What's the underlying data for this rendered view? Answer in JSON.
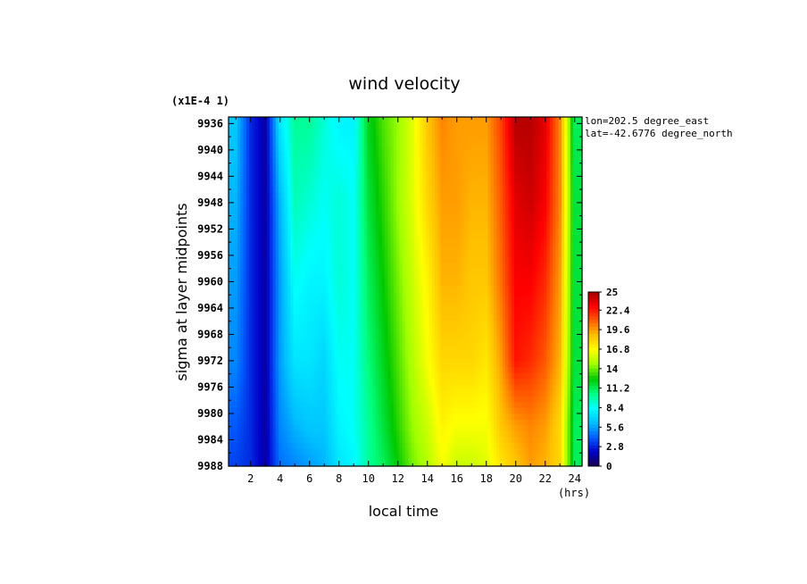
{
  "chart_data": {
    "type": "heatmap",
    "title": "wind velocity",
    "xlabel": "local time",
    "ylabel": "sigma at layer midpoints",
    "y_scale_note": "(x1E-4 1)",
    "x_unit": "(hrs)",
    "xlim": [
      0.5,
      24.5
    ],
    "ylim": [
      9988,
      9935
    ],
    "x_ticks": [
      "2",
      "4",
      "6",
      "8",
      "10",
      "12",
      "14",
      "16",
      "18",
      "20",
      "22",
      "24"
    ],
    "y_ticks": [
      "9936",
      "9940",
      "9944",
      "9948",
      "9952",
      "9956",
      "9960",
      "9964",
      "9968",
      "9972",
      "9976",
      "9980",
      "9984",
      "9988"
    ],
    "annotations": [
      "lon=202.5 degree_east",
      "lat=-42.6776 degree_north"
    ],
    "colorbar": {
      "min": 0,
      "max": 25,
      "tick_labels": [
        "25",
        "22.4",
        "19.6",
        "16.8",
        "14",
        "11.2",
        "8.4",
        "5.6",
        "2.8",
        "0"
      ],
      "colormap": [
        "#1a0050",
        "#0000c8",
        "#0060ff",
        "#00c0ff",
        "#00ffff",
        "#00ff80",
        "#00c800",
        "#a0ff00",
        "#ffff00",
        "#ffc000",
        "#ff6000",
        "#ff0000",
        "#a00000"
      ]
    },
    "x": [
      1,
      2,
      3,
      4,
      5,
      6,
      7,
      8,
      9,
      10,
      11,
      12,
      13,
      14,
      15,
      16,
      17,
      18,
      19,
      20,
      21,
      22,
      23,
      24
    ],
    "y": [
      9936,
      9948,
      9960,
      9972,
      9982,
      9988
    ],
    "values": [
      [
        6.5,
        3.0,
        1.5,
        7.5,
        10.0,
        10.0,
        9.0,
        8.0,
        8.0,
        12.0,
        13.5,
        14.5,
        16.0,
        18.5,
        20.0,
        19.5,
        19.5,
        19.5,
        21.5,
        24.5,
        24.5,
        23.5,
        20.0,
        11.0
      ],
      [
        6.0,
        3.0,
        1.5,
        6.0,
        9.5,
        9.0,
        8.5,
        9.0,
        8.5,
        11.5,
        13.0,
        14.5,
        16.0,
        18.0,
        19.5,
        19.5,
        19.0,
        19.0,
        21.0,
        23.5,
        24.0,
        23.0,
        20.0,
        11.5
      ],
      [
        5.5,
        3.0,
        1.5,
        5.5,
        8.5,
        8.0,
        8.0,
        9.0,
        8.5,
        11.0,
        12.5,
        14.0,
        15.5,
        17.0,
        19.0,
        19.0,
        18.5,
        18.5,
        20.5,
        23.0,
        23.0,
        22.0,
        19.5,
        11.5
      ],
      [
        5.0,
        3.0,
        1.5,
        5.5,
        7.5,
        7.5,
        7.0,
        8.5,
        8.5,
        10.5,
        12.0,
        13.5,
        15.0,
        16.5,
        18.0,
        18.0,
        18.0,
        17.5,
        19.5,
        22.5,
        22.0,
        21.0,
        19.0,
        11.5
      ],
      [
        4.0,
        3.0,
        1.5,
        5.0,
        6.0,
        6.5,
        6.5,
        8.0,
        8.5,
        10.0,
        11.5,
        13.0,
        14.5,
        15.5,
        17.0,
        16.5,
        16.5,
        16.5,
        18.5,
        19.5,
        20.0,
        19.5,
        18.0,
        11.0
      ],
      [
        3.5,
        3.0,
        1.5,
        4.5,
        5.0,
        5.5,
        6.0,
        7.5,
        8.0,
        10.0,
        11.0,
        12.5,
        14.0,
        15.0,
        16.5,
        15.5,
        15.5,
        16.0,
        17.5,
        18.5,
        19.5,
        19.0,
        18.0,
        11.0
      ]
    ]
  }
}
